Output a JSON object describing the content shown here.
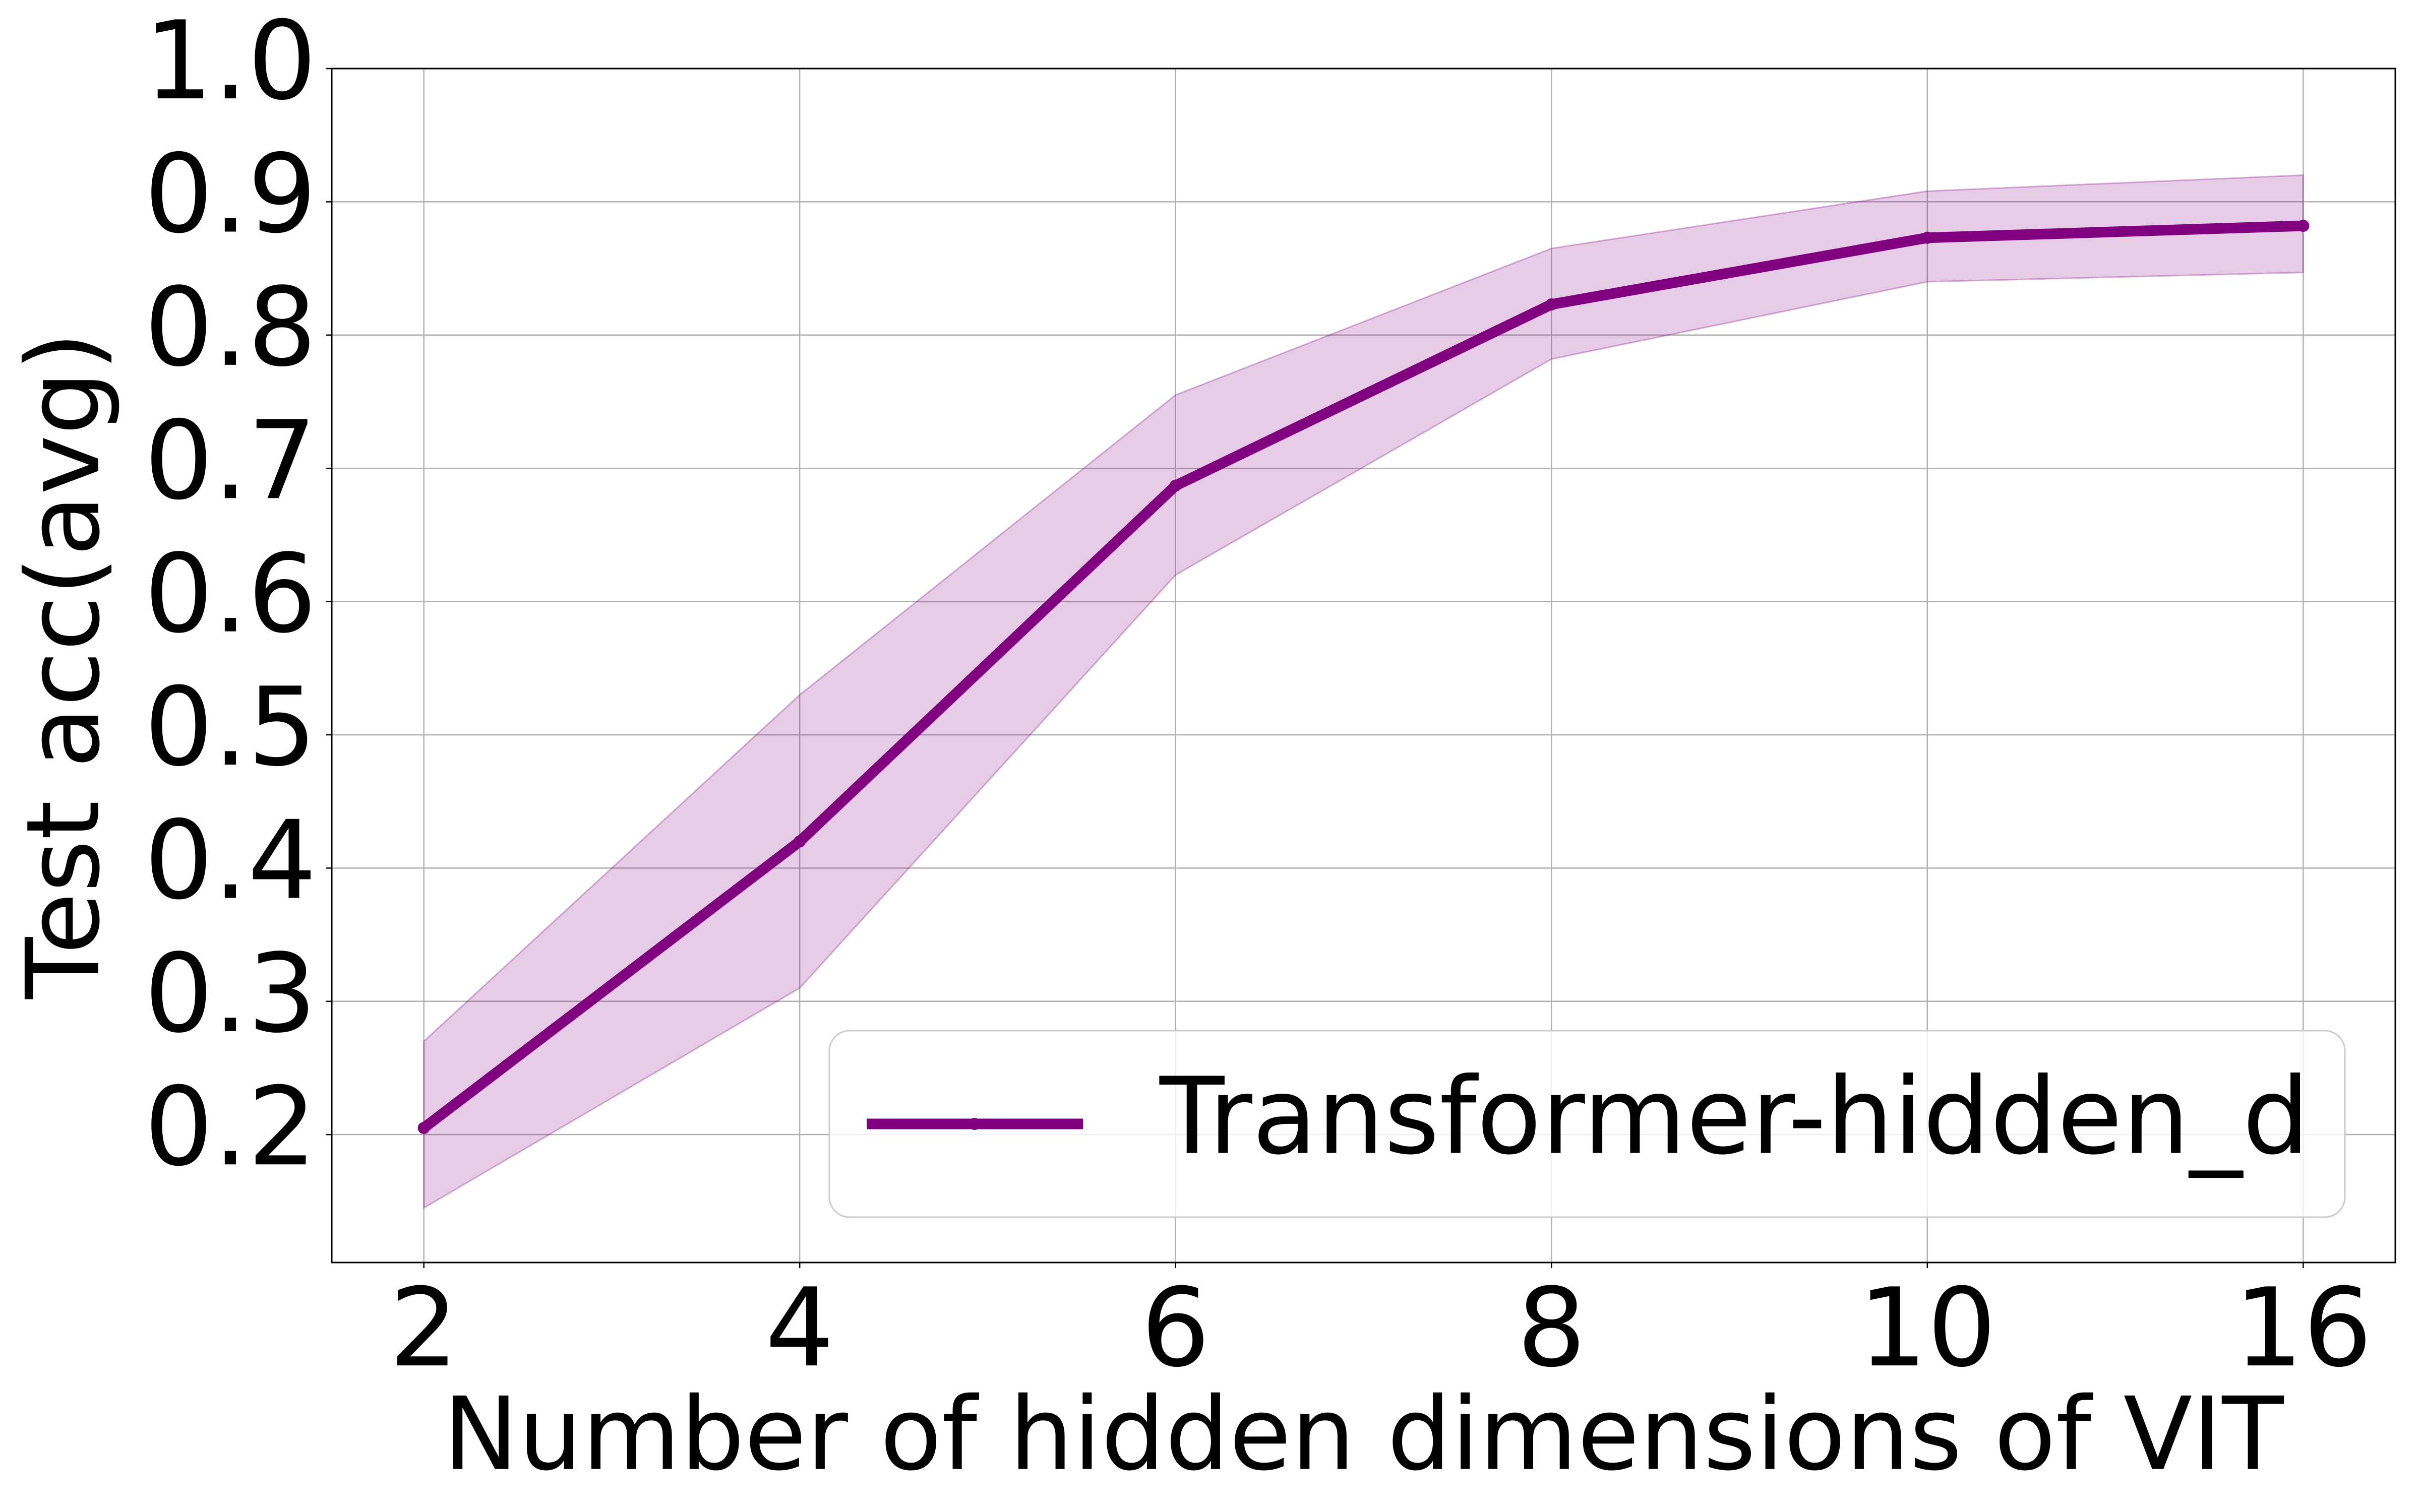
{
  "chart_data": {
    "type": "line",
    "x_label": "Number of hidden dimensions of VIT",
    "y_label": "Test acc(avg)",
    "categories": [
      "2",
      "4",
      "6",
      "8",
      "10",
      "16"
    ],
    "series": [
      {
        "name": "Transformer-hidden_d",
        "color": "#800080",
        "values": [
          0.205,
          0.42,
          0.687,
          0.823,
          0.873,
          0.882
        ],
        "lower": [
          0.145,
          0.31,
          0.62,
          0.782,
          0.84,
          0.847
        ],
        "upper": [
          0.27,
          0.53,
          0.755,
          0.865,
          0.908,
          0.92
        ]
      }
    ],
    "ylim": [
      0.104,
      1.0
    ],
    "yticks": [
      0.2,
      0.3,
      0.4,
      0.5,
      0.6,
      0.7,
      0.8,
      0.9,
      {
        "value": 1,
        "label": "1.0"
      }
    ],
    "grid": true,
    "legend": "lower right"
  }
}
